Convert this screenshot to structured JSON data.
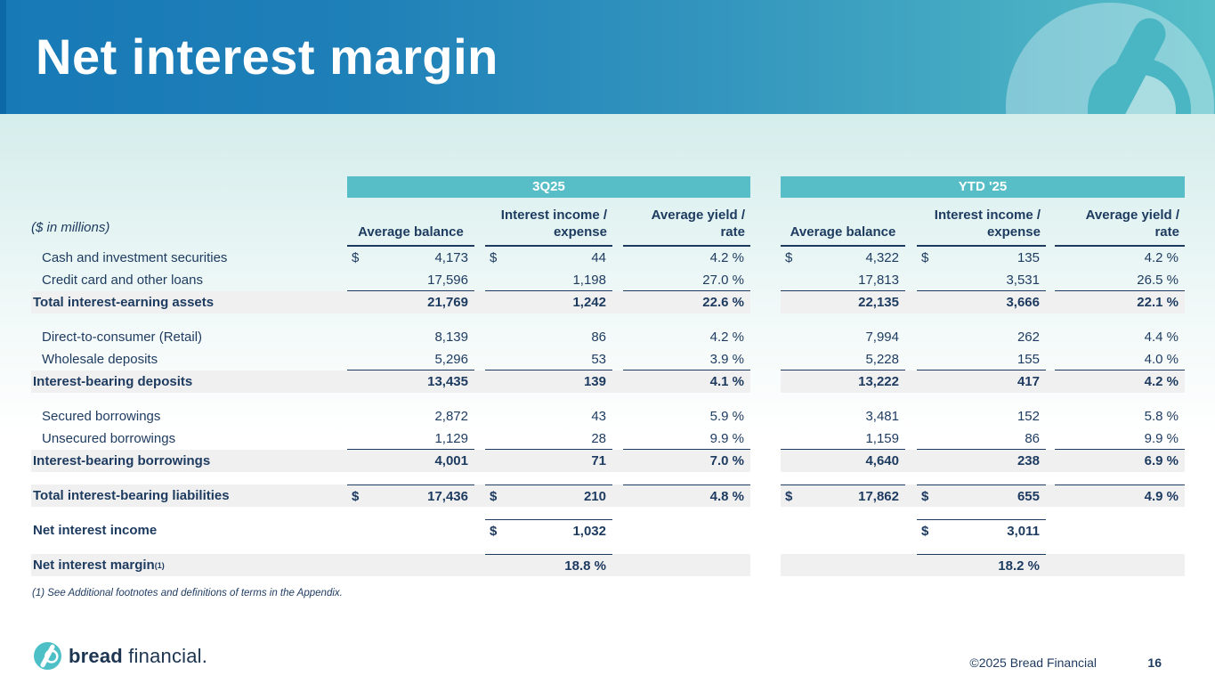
{
  "slide": {
    "title": "Net interest margin",
    "units_note": "($ in millions)",
    "footnote": "(1) See Additional footnotes and definitions of terms in the Appendix.",
    "footer": {
      "logo_bold": "bread",
      "logo_regular": "financial.",
      "copyright": "©2025 Bread Financial",
      "page_number": "16"
    }
  },
  "colors": {
    "header_blue": "#1779b6",
    "header_teal": "#55bec7",
    "band_teal": "#57bec7",
    "navy_text": "#1d3a5f",
    "shade_gray": "#f0f0f1"
  },
  "table": {
    "groups": [
      "3Q25",
      "YTD '25"
    ],
    "columns": [
      "Average balance",
      "Interest income /\nexpense",
      "Average yield /\nrate",
      "Average balance",
      "Interest income /\nexpense",
      "Average yield /\nrate"
    ],
    "rows": [
      {
        "label": "Cash and investment securities",
        "indent": true,
        "cells": [
          {
            "d": "$",
            "v": "4,173"
          },
          {
            "d": "$",
            "v": "44"
          },
          {
            "v": "4.2 %"
          },
          {
            "d": "$",
            "v": "4,322"
          },
          {
            "d": "$",
            "v": "135"
          },
          {
            "v": "4.2 %"
          }
        ]
      },
      {
        "label": "Credit card and other loans",
        "indent": true,
        "bottom_border": [
          0,
          1,
          2,
          3,
          4,
          5
        ],
        "cells": [
          {
            "v": "17,596"
          },
          {
            "v": "1,198"
          },
          {
            "v": "27.0 %"
          },
          {
            "v": "17,813"
          },
          {
            "v": "3,531"
          },
          {
            "v": "26.5 %"
          }
        ]
      },
      {
        "label": "Total interest-earning assets",
        "bold": true,
        "shade": true,
        "gap_after": true,
        "cells": [
          {
            "v": "21,769"
          },
          {
            "v": "1,242"
          },
          {
            "v": "22.6 %"
          },
          {
            "v": "22,135"
          },
          {
            "v": "3,666"
          },
          {
            "v": "22.1 %"
          }
        ]
      },
      {
        "label": "Direct-to-consumer (Retail)",
        "indent": true,
        "cells": [
          {
            "v": "8,139"
          },
          {
            "v": "86"
          },
          {
            "v": "4.2 %"
          },
          {
            "v": "7,994"
          },
          {
            "v": "262"
          },
          {
            "v": "4.4 %"
          }
        ]
      },
      {
        "label": "Wholesale deposits",
        "indent": true,
        "bottom_border": [
          0,
          1,
          2,
          3,
          4,
          5
        ],
        "cells": [
          {
            "v": "5,296"
          },
          {
            "v": "53"
          },
          {
            "v": "3.9 %"
          },
          {
            "v": "5,228"
          },
          {
            "v": "155"
          },
          {
            "v": "4.0 %"
          }
        ]
      },
      {
        "label": "Interest-bearing deposits",
        "bold": true,
        "shade": true,
        "gap_after": true,
        "cells": [
          {
            "v": "13,435"
          },
          {
            "v": "139"
          },
          {
            "v": "4.1 %"
          },
          {
            "v": "13,222"
          },
          {
            "v": "417"
          },
          {
            "v": "4.2 %"
          }
        ]
      },
      {
        "label": "Secured borrowings",
        "indent": true,
        "cells": [
          {
            "v": "2,872"
          },
          {
            "v": "43"
          },
          {
            "v": "5.9 %"
          },
          {
            "v": "3,481"
          },
          {
            "v": "152"
          },
          {
            "v": "5.8 %"
          }
        ]
      },
      {
        "label": "Unsecured borrowings",
        "indent": true,
        "bottom_border": [
          0,
          1,
          2,
          3,
          4,
          5
        ],
        "cells": [
          {
            "v": "1,129"
          },
          {
            "v": "28"
          },
          {
            "v": "9.9 %"
          },
          {
            "v": "1,159"
          },
          {
            "v": "86"
          },
          {
            "v": "9.9 %"
          }
        ]
      },
      {
        "label": "Interest-bearing borrowings",
        "bold": true,
        "shade": true,
        "gap_after": true,
        "cells": [
          {
            "v": "4,001"
          },
          {
            "v": "71"
          },
          {
            "v": "7.0 %"
          },
          {
            "v": "4,640"
          },
          {
            "v": "238"
          },
          {
            "v": "6.9 %"
          }
        ]
      },
      {
        "label": "Total interest-bearing liabilities",
        "bold": true,
        "shade": true,
        "gap_after": true,
        "top_border": [
          0,
          1,
          2,
          3,
          4,
          5
        ],
        "cells": [
          {
            "d": "$",
            "v": "17,436"
          },
          {
            "d": "$",
            "v": "210"
          },
          {
            "v": "4.8 %"
          },
          {
            "d": "$",
            "v": "17,862"
          },
          {
            "d": "$",
            "v": "655"
          },
          {
            "v": "4.9 %"
          }
        ]
      },
      {
        "label": "Net interest income",
        "bold": true,
        "gap_after": true,
        "top_border": [
          1,
          4
        ],
        "cells": [
          null,
          {
            "d": "$",
            "v": "1,032"
          },
          null,
          null,
          {
            "d": "$",
            "v": "3,011"
          },
          null
        ]
      },
      {
        "label": "Net interest margin",
        "sup": "(1)",
        "bold": true,
        "shade": true,
        "top_border": [
          1,
          4
        ],
        "cells": [
          null,
          {
            "v": "18.8 %"
          },
          null,
          null,
          {
            "v": "18.2 %"
          },
          null
        ]
      }
    ]
  }
}
